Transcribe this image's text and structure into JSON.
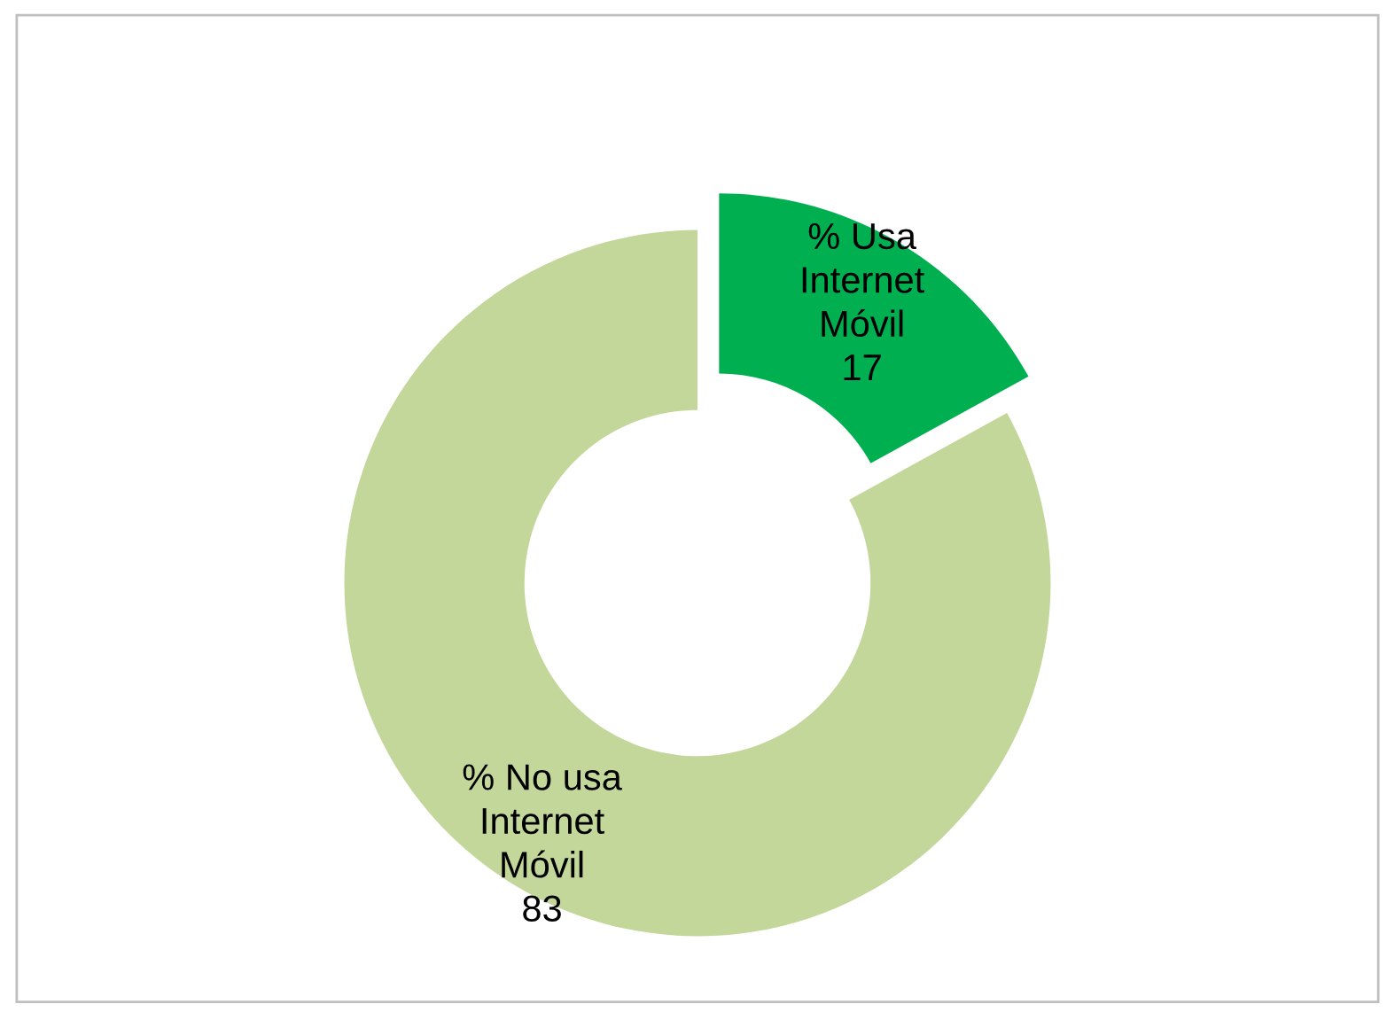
{
  "chart_data": {
    "type": "donut",
    "categories": [
      "% Usa Internet Móvil",
      "% No usa Internet Móvil"
    ],
    "values": [
      17,
      83
    ],
    "colors": [
      "#00b050",
      "#c4d79b"
    ],
    "data_labels": true,
    "legend": false
  }
}
